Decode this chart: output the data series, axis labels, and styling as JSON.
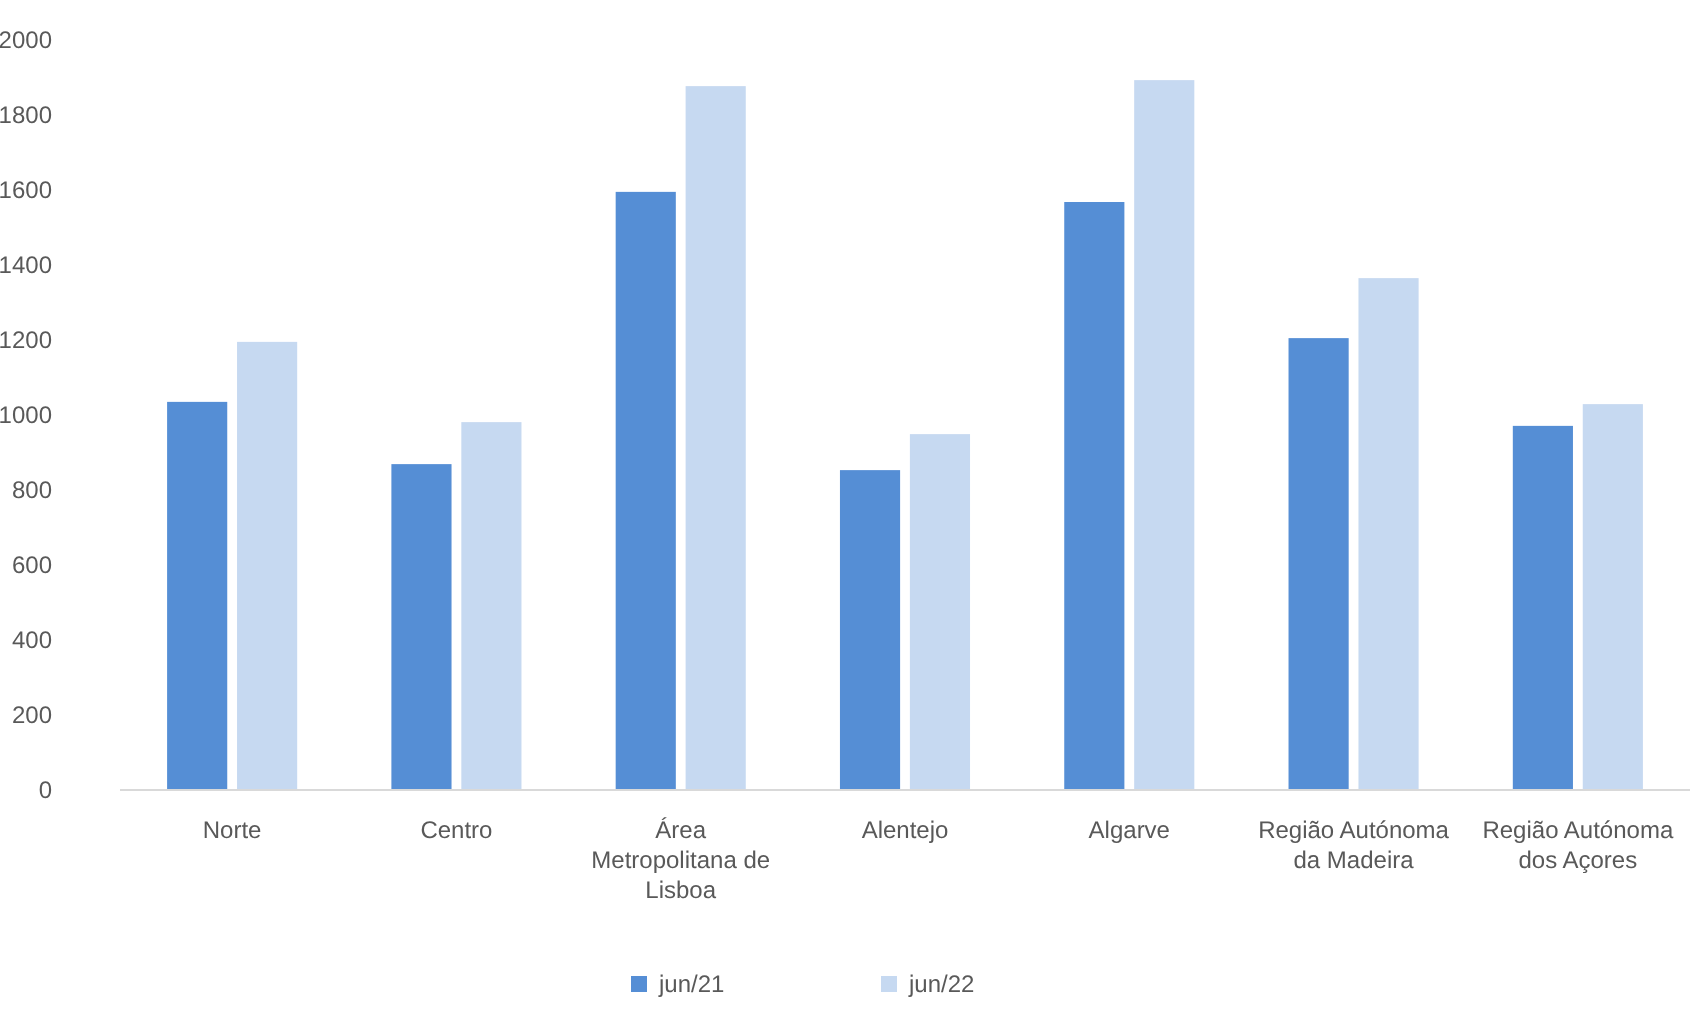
{
  "chart_data": {
    "type": "bar",
    "categories": [
      "Norte",
      "Centro",
      "Área Metropolitana de Lisboa",
      "Alentejo",
      "Algarve",
      "Região Autónoma da Madeira",
      "Região Autónoma dos Açores"
    ],
    "series": [
      {
        "name": "jun/21",
        "color": "#558ed5",
        "values": [
          1035,
          869,
          1595,
          853,
          1568,
          1205,
          971
        ]
      },
      {
        "name": "jun/22",
        "color": "#c6d9f1",
        "values": [
          1195,
          981,
          1877,
          949,
          1893,
          1365,
          1029
        ]
      }
    ],
    "ylim": [
      0,
      2000
    ],
    "yticks": [
      0,
      200,
      400,
      600,
      800,
      1000,
      1200,
      1400,
      1600,
      1800,
      2000
    ],
    "grid": false,
    "legend": "bottom"
  }
}
